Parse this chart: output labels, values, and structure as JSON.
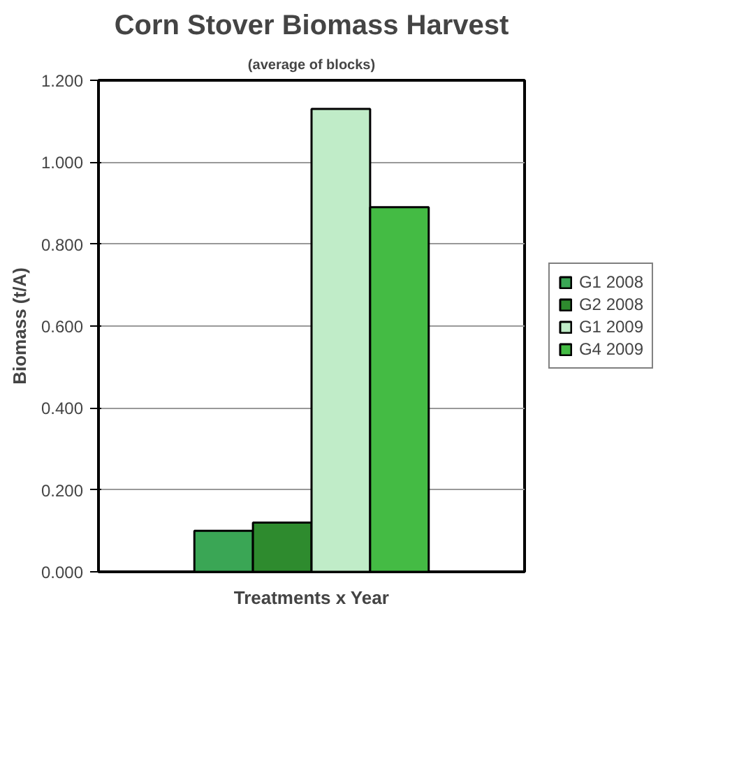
{
  "chart_data": {
    "type": "bar",
    "title": "Corn Stover Biomass Harvest",
    "subtitle": "(average of blocks)",
    "xlabel": "Treatments x Year",
    "ylabel": "Biomass (t/A)",
    "categories": [
      null
    ],
    "series": [
      {
        "name": "G1 2008",
        "color": "#3aa655",
        "values": [
          0.1
        ]
      },
      {
        "name": "G2 2008",
        "color": "#2e8b2e",
        "values": [
          0.12
        ]
      },
      {
        "name": "G1 2009",
        "color": "#c0ecc8",
        "values": [
          1.13
        ]
      },
      {
        "name": "G4 2009",
        "color": "#44bb44",
        "values": [
          0.89
        ]
      }
    ],
    "ylim": [
      0,
      1.2
    ],
    "yticks": [
      {
        "value": 0,
        "label": "0.000"
      },
      {
        "value": 0.2,
        "label": "0.200"
      },
      {
        "value": 0.4,
        "label": "0.400"
      },
      {
        "value": 0.6,
        "label": "0.600"
      },
      {
        "value": 0.8,
        "label": "0.800"
      },
      {
        "value": 1.0,
        "label": "1.000"
      },
      {
        "value": 1.2,
        "label": "1.200"
      }
    ],
    "grid": "y",
    "legend": "right"
  }
}
